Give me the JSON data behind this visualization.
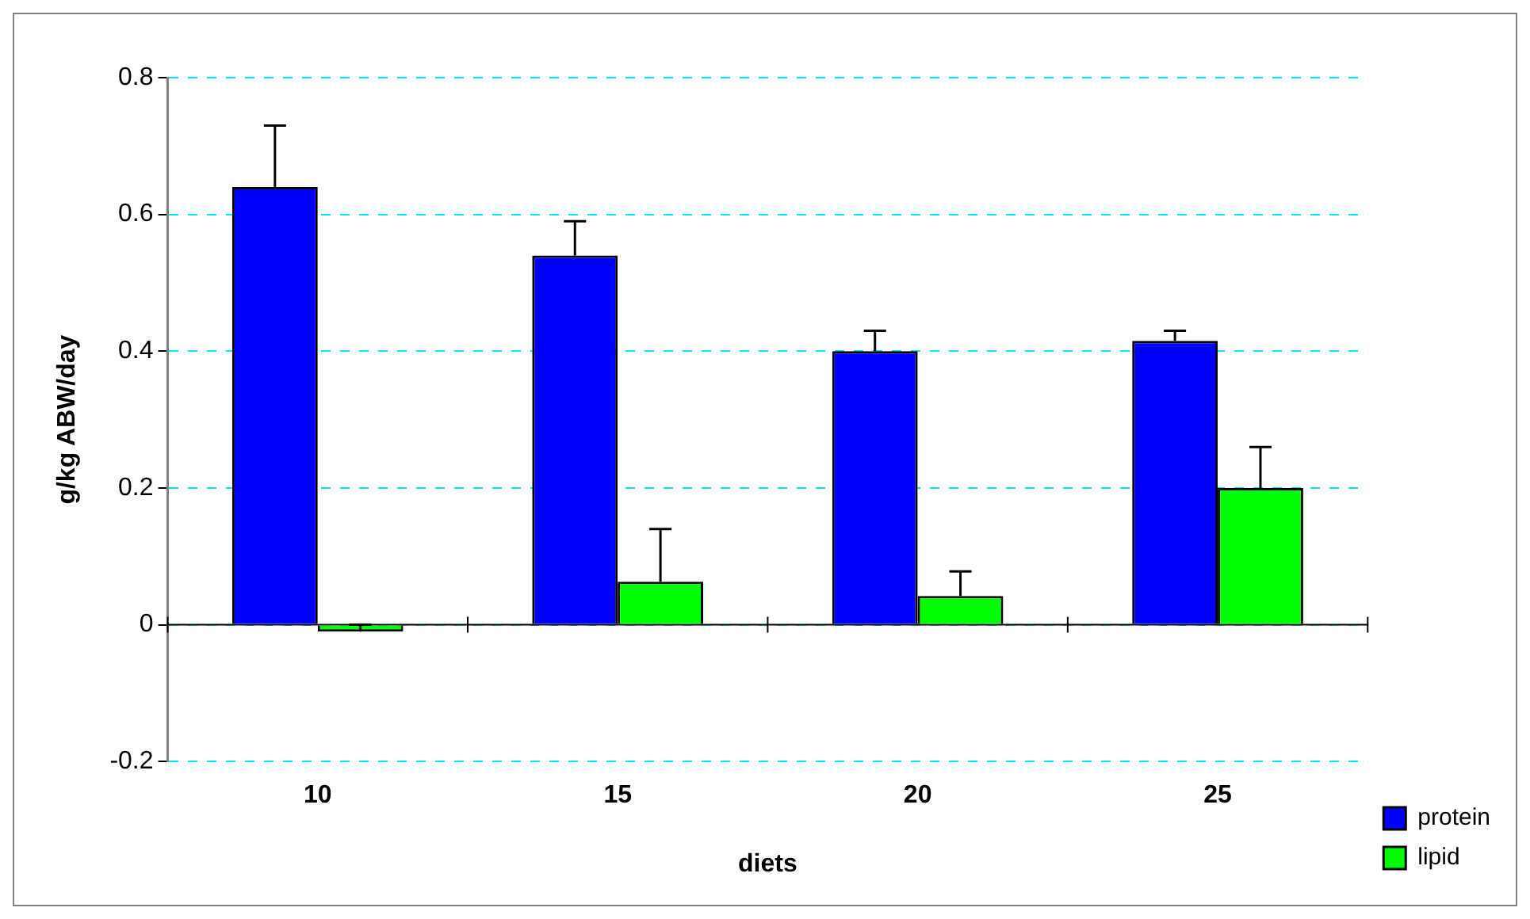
{
  "chart_data": {
    "type": "bar",
    "xlabel": "diets",
    "ylabel": "g/kg ABW/day",
    "categories": [
      "10",
      "15",
      "20",
      "25"
    ],
    "series": [
      {
        "name": "protein",
        "color": "#0000ff",
        "values": [
          0.64,
          0.54,
          0.4,
          0.415
        ],
        "errors": [
          [
            0.64,
            0.73
          ],
          [
            0.54,
            0.59
          ],
          [
            0.4,
            0.43
          ],
          [
            0.415,
            0.43
          ]
        ]
      },
      {
        "name": "lipid",
        "color": "#00ff00",
        "values": [
          -0.01,
          0.063,
          0.042,
          0.2
        ],
        "errors": [
          [
            -0.01,
            0
          ],
          [
            0.063,
            0.14
          ],
          [
            0.042,
            0.078
          ],
          [
            0.2,
            0.26
          ]
        ]
      }
    ],
    "ylim": [
      -0.2,
      0.8
    ],
    "yticks": [
      -0.2,
      0,
      0.2,
      0.4,
      0.6,
      0.8
    ],
    "grid": "y",
    "legend": "bottom right"
  }
}
